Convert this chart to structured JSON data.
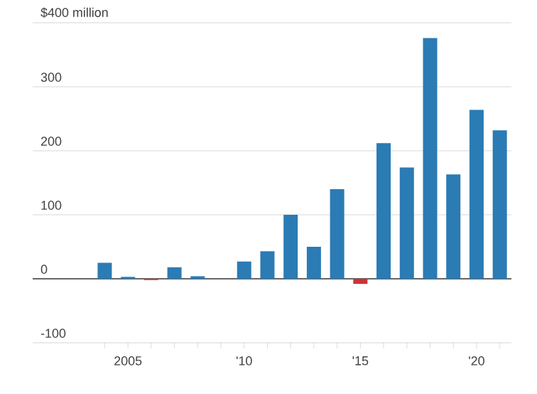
{
  "chart_data": {
    "type": "bar",
    "categories": [
      null,
      "2005",
      null,
      null,
      null,
      null,
      "'10",
      null,
      null,
      null,
      null,
      "'15",
      null,
      null,
      null,
      null,
      "'20",
      null
    ],
    "values": [
      25,
      3,
      -2,
      18,
      4,
      0,
      27,
      43,
      100,
      50,
      140,
      -8,
      212,
      174,
      376,
      163,
      264,
      232
    ],
    "colors": [
      "#2b7bb4",
      "#2b7bb4",
      "#cc3333",
      "#2b7bb4",
      "#2b7bb4",
      "#2b7bb4",
      "#2b7bb4",
      "#2b7bb4",
      "#2b7bb4",
      "#2b7bb4",
      "#2b7bb4",
      "#cc3333",
      "#2b7bb4",
      "#2b7bb4",
      "#2b7bb4",
      "#2b7bb4",
      "#2b7bb4",
      "#2b7bb4"
    ],
    "ylim": [
      -100,
      400
    ],
    "yticks": [
      {
        "value": -100,
        "label": "-100"
      },
      0,
      100,
      200,
      300,
      {
        "value": 400,
        "label": "$400 million"
      }
    ],
    "grid": "y"
  }
}
